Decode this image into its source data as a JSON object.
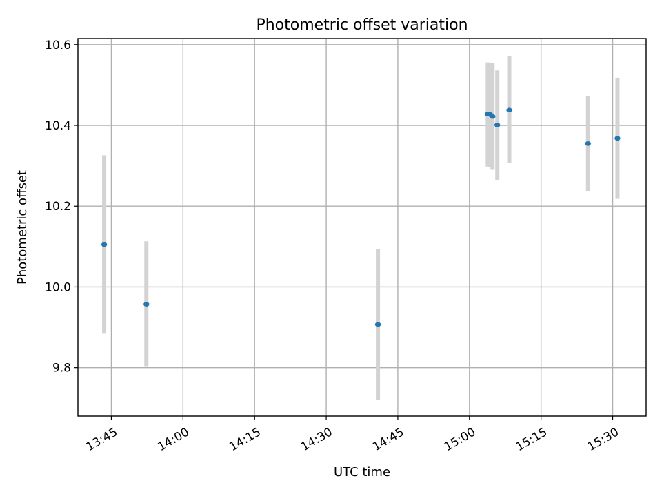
{
  "chart_data": {
    "type": "scatter",
    "title": "Photometric offset variation",
    "xlabel": "UTC time",
    "ylabel": "Photometric offset",
    "x_tick_labels": [
      "13:45",
      "14:00",
      "14:15",
      "14:30",
      "14:45",
      "15:00",
      "15:15",
      "15:30"
    ],
    "y_tick_labels": [
      "9.8",
      "10.0",
      "10.2",
      "10.4",
      "10.6"
    ],
    "x_ticks": [
      "13:45",
      "14:00",
      "14:15",
      "14:30",
      "14:45",
      "15:00",
      "15:15",
      "15:30"
    ],
    "y_ticks": [
      9.8,
      10.0,
      10.2,
      10.4,
      10.6
    ],
    "xlim": [
      "13:38",
      "15:37"
    ],
    "ylim": [
      9.68,
      10.615
    ],
    "grid": true,
    "point_color": "#1f77b4",
    "errorbar_color": "#d3d3d3",
    "points": [
      {
        "x": "13:43:30",
        "y": 10.105,
        "yerr_low": 9.884,
        "yerr_high": 10.326
      },
      {
        "x": "13:52:20",
        "y": 9.957,
        "yerr_low": 9.802,
        "yerr_high": 10.113
      },
      {
        "x": "14:40:50",
        "y": 9.907,
        "yerr_low": 9.721,
        "yerr_high": 10.093
      },
      {
        "x": "15:03:50",
        "y": 10.428,
        "yerr_low": 10.298,
        "yerr_high": 10.556
      },
      {
        "x": "15:04:20",
        "y": 10.427,
        "yerr_low": 10.297,
        "yerr_high": 10.555
      },
      {
        "x": "15:04:50",
        "y": 10.422,
        "yerr_low": 10.29,
        "yerr_high": 10.554
      },
      {
        "x": "15:05:50",
        "y": 10.401,
        "yerr_low": 10.265,
        "yerr_high": 10.536
      },
      {
        "x": "15:08:20",
        "y": 10.438,
        "yerr_low": 10.307,
        "yerr_high": 10.571
      },
      {
        "x": "15:24:50",
        "y": 10.355,
        "yerr_low": 10.238,
        "yerr_high": 10.472
      },
      {
        "x": "15:31:00",
        "y": 10.368,
        "yerr_low": 10.218,
        "yerr_high": 10.518
      }
    ]
  }
}
